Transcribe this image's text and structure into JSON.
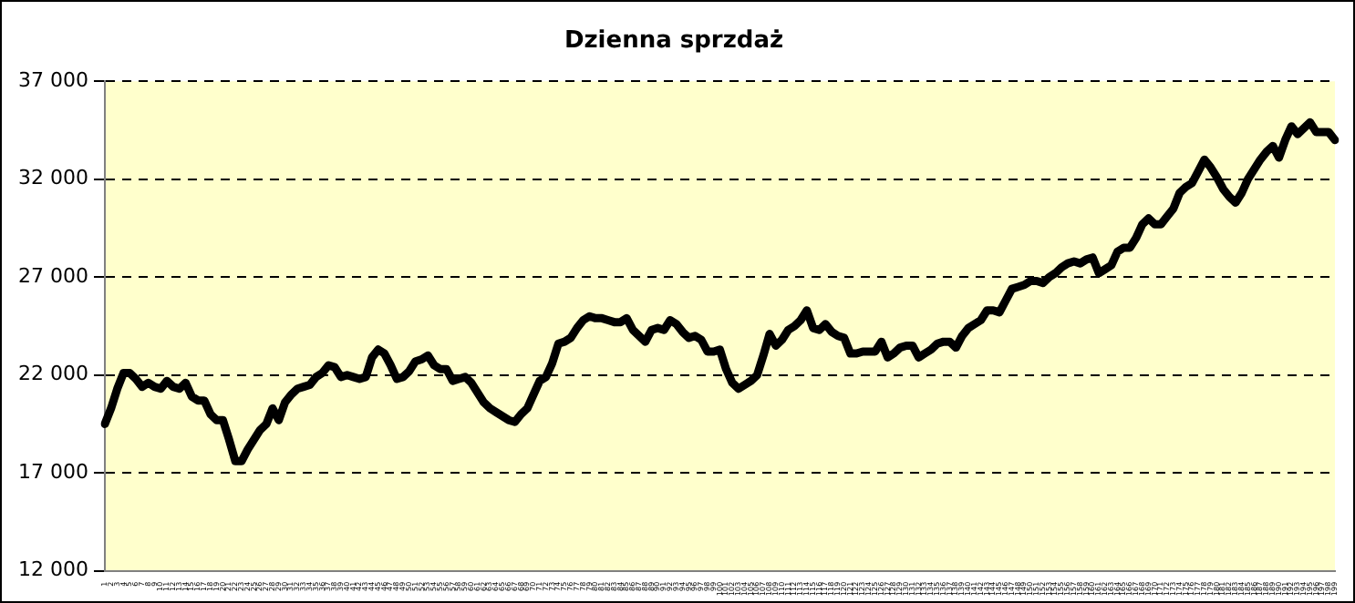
{
  "chart_data": {
    "type": "line",
    "title": "Dzienna sprzdaż",
    "categories": [
      "1",
      "2",
      "3",
      "4",
      "5",
      "6",
      "7",
      "8",
      "9",
      "10",
      "11",
      "12",
      "13",
      "14",
      "15",
      "16",
      "17",
      "18",
      "19",
      "20",
      "21",
      "22",
      "23",
      "24",
      "25",
      "26",
      "27",
      "28",
      "29",
      "30",
      "31",
      "32",
      "33",
      "34",
      "35",
      "36",
      "37",
      "38",
      "39",
      "40",
      "41",
      "42",
      "43",
      "44",
      "45",
      "46",
      "47",
      "48",
      "49",
      "50",
      "51",
      "52",
      "53",
      "54",
      "55",
      "56",
      "57",
      "58",
      "59",
      "60",
      "61",
      "62",
      "63",
      "64",
      "65",
      "66",
      "67",
      "68",
      "69",
      "70",
      "71",
      "72",
      "73",
      "74",
      "75",
      "76",
      "77",
      "78",
      "79",
      "80",
      "81",
      "82",
      "83",
      "84",
      "85",
      "86",
      "87",
      "88",
      "89",
      "90",
      "91",
      "92",
      "93",
      "94",
      "95",
      "96",
      "97",
      "98",
      "99",
      "100",
      "101",
      "102",
      "103",
      "104",
      "105",
      "106",
      "107",
      "108",
      "109",
      "110",
      "111",
      "112",
      "113",
      "114",
      "115",
      "116",
      "117",
      "118",
      "119",
      "120",
      "121",
      "122",
      "123",
      "124",
      "125",
      "126",
      "127",
      "128",
      "129",
      "130",
      "131",
      "132",
      "133",
      "134",
      "135",
      "136",
      "137",
      "138",
      "139",
      "140",
      "141",
      "142",
      "143",
      "144",
      "145",
      "146",
      "147",
      "148",
      "149",
      "150",
      "151",
      "152",
      "153",
      "154",
      "155",
      "156",
      "157",
      "158",
      "159",
      "160",
      "161",
      "162",
      "163",
      "164",
      "165",
      "166",
      "167",
      "168",
      "169",
      "170",
      "171",
      "172",
      "173",
      "174",
      "175",
      "176",
      "177",
      "178",
      "179",
      "180",
      "181",
      "182",
      "183",
      "184",
      "185",
      "186",
      "187",
      "188",
      "189",
      "190",
      "191",
      "192",
      "193",
      "194",
      "195",
      "196",
      "197",
      "198",
      "199"
    ],
    "series": [
      {
        "color": "#000000",
        "values": [
          19500,
          20300,
          21300,
          22100,
          22100,
          21800,
          21400,
          21600,
          21400,
          21300,
          21700,
          21400,
          21300,
          21600,
          20900,
          20700,
          20700,
          20000,
          19700,
          19700,
          18700,
          17600,
          17600,
          18200,
          18700,
          19200,
          19500,
          20300,
          19700,
          20600,
          21000,
          21300,
          21400,
          21500,
          21900,
          22100,
          22500,
          22400,
          21900,
          22000,
          21900,
          21800,
          21900,
          22900,
          23300,
          23100,
          22500,
          21800,
          21900,
          22200,
          22700,
          22800,
          23000,
          22500,
          22300,
          22300,
          21700,
          21800,
          21900,
          21600,
          21100,
          20600,
          20300,
          20100,
          19900,
          19700,
          19600,
          20000,
          20300,
          21000,
          21700,
          21900,
          22600,
          23600,
          23700,
          23900,
          24400,
          24800,
          25000,
          24900,
          24900,
          24800,
          24700,
          24700,
          24900,
          24300,
          24000,
          23700,
          24300,
          24400,
          24300,
          24800,
          24600,
          24200,
          23900,
          24000,
          23800,
          23200,
          23200,
          23300,
          22300,
          21600,
          21300,
          21500,
          21700,
          22000,
          23000,
          24100,
          23500,
          23800,
          24300,
          24500,
          24800,
          25300,
          24400,
          24300,
          24600,
          24200,
          24000,
          23900,
          23100,
          23100,
          23200,
          23200,
          23200,
          23700,
          22900,
          23100,
          23400,
          23500,
          23500,
          22900,
          23100,
          23300,
          23600,
          23700,
          23700,
          23400,
          24000,
          24400,
          24600,
          24800,
          25300,
          25300,
          25200,
          25800,
          26400,
          26500,
          26600,
          26800,
          26800,
          26700,
          27000,
          27200,
          27500,
          27700,
          27800,
          27700,
          27900,
          28000,
          27200,
          27400,
          27600,
          28300,
          28500,
          28500,
          29000,
          29700,
          30000,
          29700,
          29700,
          30100,
          30500,
          31300,
          31600,
          31800,
          32400,
          33000,
          32600,
          32100,
          31500,
          31100,
          30800,
          31300,
          32000,
          32500,
          33000,
          33400,
          33700,
          33100,
          34000,
          34700,
          34300,
          34600,
          34900,
          34400,
          34400,
          34400,
          34000
        ]
      }
    ],
    "ylim": [
      12000,
      37000
    ],
    "yticks": [
      {
        "value": 12000,
        "label": "12 000"
      },
      {
        "value": 17000,
        "label": "17 000"
      },
      {
        "value": 22000,
        "label": "22 000"
      },
      {
        "value": 27000,
        "label": "27 000"
      },
      {
        "value": 32000,
        "label": "32 000"
      },
      {
        "value": 37000,
        "label": "37 000"
      }
    ],
    "grid": "y",
    "legend": false,
    "marker": "none",
    "line_style": "solid"
  }
}
